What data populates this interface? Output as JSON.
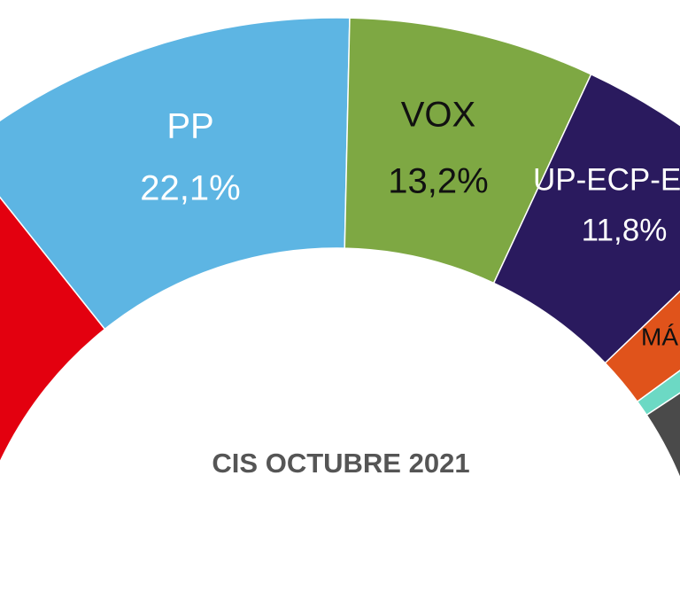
{
  "chart_data": {
    "type": "donut",
    "title": "CIS OCTUBRE 2021",
    "categories": [
      null,
      "PP",
      "VOX",
      "UP-ECP-E",
      "MÁ",
      null,
      null
    ],
    "values": [
      28.6,
      22.1,
      13.2,
      11.8,
      4.3,
      1.4,
      18.6
    ],
    "value_labels": [
      null,
      "22,1%",
      "13,2%",
      "11,8%",
      null,
      null,
      null
    ],
    "colors": [
      "#e3000f",
      "#5db5e3",
      "#7ea843",
      "#2a1a5e",
      "#e0531b",
      "#6cd9c4",
      "#4a4a4a"
    ]
  }
}
